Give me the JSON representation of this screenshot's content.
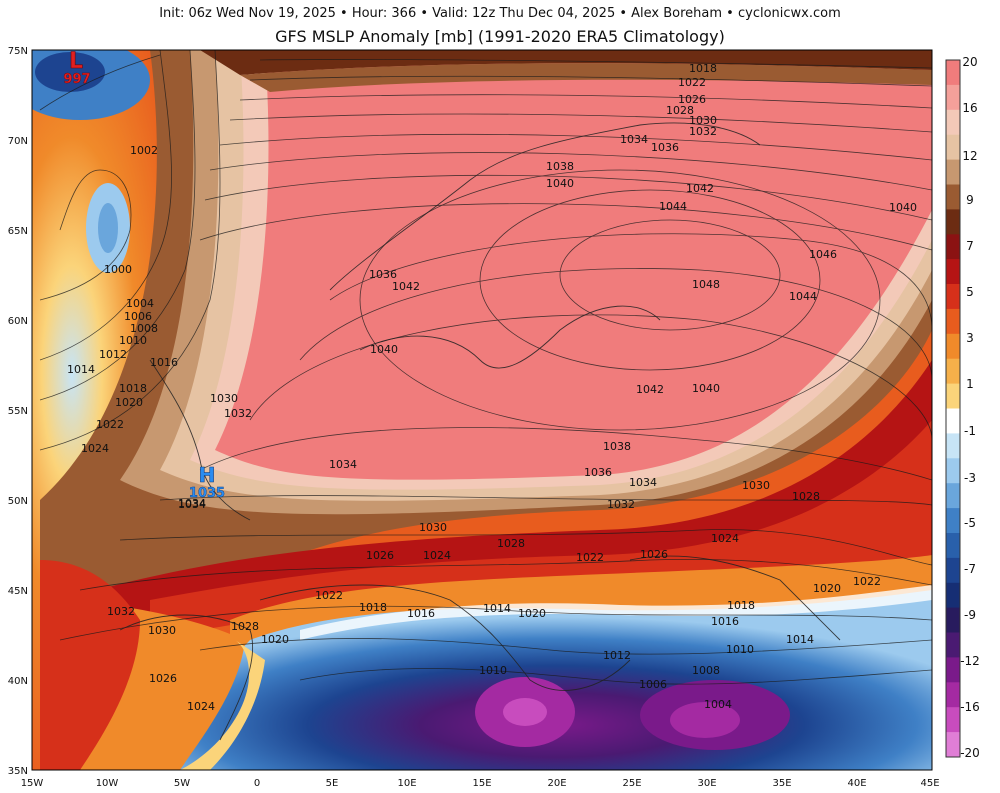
{
  "header": {
    "line1": "Init: 06z Wed Nov 19, 2025 • Hour: 366 • Valid: 12z Thu Dec 04, 2025 • Alex Boreham • cyclonicwx.com",
    "line2": "GFS MSLP Anomaly [mb] (1991-2020 ERA5 Climatology)"
  },
  "axes": {
    "lon_labels": [
      "15W",
      "10W",
      "5W",
      "0",
      "5E",
      "10E",
      "15E",
      "20E",
      "25E",
      "30E",
      "35E",
      "40E",
      "45E"
    ],
    "lat_labels": [
      "75N",
      "70N",
      "65N",
      "60N",
      "55N",
      "50N",
      "45N",
      "40N",
      "35N"
    ]
  },
  "colorbar": {
    "labels": [
      "20",
      "16",
      "12",
      "9",
      "7",
      "5",
      "3",
      "1",
      "-1",
      "-3",
      "-5",
      "-7",
      "-9",
      "-12",
      "-16",
      "-20"
    ],
    "colors": [
      "#f07c7c",
      "#f4a09a",
      "#f3c9b8",
      "#e6c3a3",
      "#c79870",
      "#9a5b32",
      "#6c2c12",
      "#8b1212",
      "#b51414",
      "#d6301a",
      "#e85c1e",
      "#f08a2a",
      "#f6b04a",
      "#fbd47a",
      "#ffffff",
      "#c7e4f6",
      "#9ccaee",
      "#6aa6dc",
      "#3f80c6",
      "#2960ab",
      "#1d4490",
      "#162e74",
      "#281b5e",
      "#4a1a72",
      "#7a1a8a",
      "#a42aa2",
      "#c84cbe",
      "#e07ed6"
    ]
  },
  "markers": {
    "low": {
      "letter": "L",
      "value": "997",
      "color": "#e02020"
    },
    "high": {
      "letter": "H",
      "value": "1035",
      "color": "#2a8cf0"
    }
  },
  "isobar_labels": [
    {
      "t": "1018"
    },
    {
      "t": "1022"
    },
    {
      "t": "1026"
    },
    {
      "t": "1028"
    },
    {
      "t": "1030"
    },
    {
      "t": "1032"
    },
    {
      "t": "1034"
    },
    {
      "t": "1036"
    },
    {
      "t": "1038"
    },
    {
      "t": "1040"
    },
    {
      "t": "1042"
    },
    {
      "t": "1044"
    },
    {
      "t": "1040"
    },
    {
      "t": "1046"
    },
    {
      "t": "1048"
    },
    {
      "t": "1044"
    },
    {
      "t": "1002"
    },
    {
      "t": "1000"
    },
    {
      "t": "1004"
    },
    {
      "t": "1006"
    },
    {
      "t": "1008"
    },
    {
      "t": "1010"
    },
    {
      "t": "1012"
    },
    {
      "t": "1014"
    },
    {
      "t": "1016"
    },
    {
      "t": "1018"
    },
    {
      "t": "1020"
    },
    {
      "t": "1022"
    },
    {
      "t": "1024"
    },
    {
      "t": "1036"
    },
    {
      "t": "1042"
    },
    {
      "t": "1040"
    },
    {
      "t": "1030"
    },
    {
      "t": "1032"
    },
    {
      "t": "1034"
    },
    {
      "t": "1034"
    },
    {
      "t": "1042"
    },
    {
      "t": "1040"
    },
    {
      "t": "1038"
    },
    {
      "t": "1036"
    },
    {
      "t": "1034"
    },
    {
      "t": "1032"
    },
    {
      "t": "1030"
    },
    {
      "t": "1028"
    },
    {
      "t": "1030"
    },
    {
      "t": "1028"
    },
    {
      "t": "1026"
    },
    {
      "t": "1024"
    },
    {
      "t": "1022"
    },
    {
      "t": "1026"
    },
    {
      "t": "1024"
    },
    {
      "t": "1020"
    },
    {
      "t": "1022"
    },
    {
      "t": "1022"
    },
    {
      "t": "1018"
    },
    {
      "t": "1016"
    },
    {
      "t": "1014"
    },
    {
      "t": "1020"
    },
    {
      "t": "1018"
    },
    {
      "t": "1016"
    },
    {
      "t": "1014"
    },
    {
      "t": "1010"
    },
    {
      "t": "1012"
    },
    {
      "t": "1008"
    },
    {
      "t": "1006"
    },
    {
      "t": "1004"
    },
    {
      "t": "1010"
    },
    {
      "t": "1032"
    },
    {
      "t": "1030"
    },
    {
      "t": "1028"
    },
    {
      "t": "1020"
    },
    {
      "t": "1026"
    },
    {
      "t": "1024"
    },
    {
      "t": "1034"
    }
  ]
}
